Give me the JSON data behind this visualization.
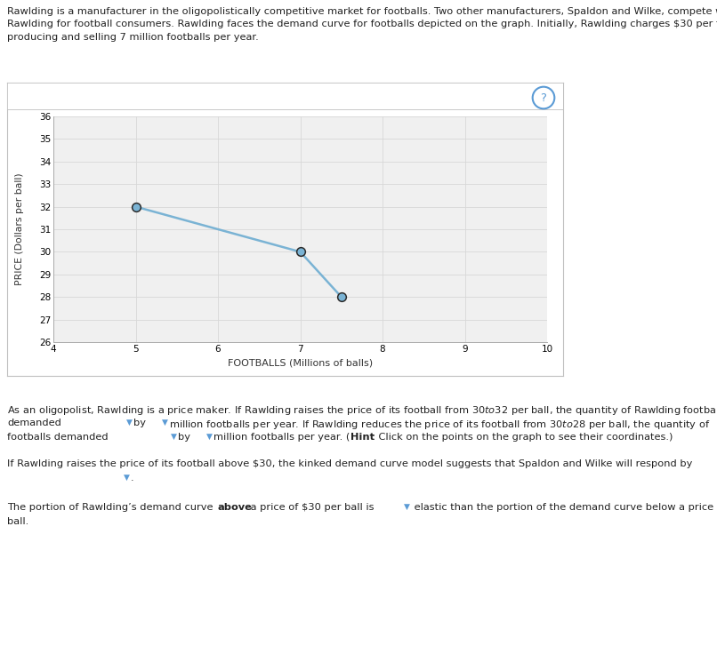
{
  "curve_x": [
    5,
    7,
    7.5
  ],
  "curve_y": [
    32,
    30,
    28
  ],
  "points": [
    [
      5,
      32
    ],
    [
      7,
      30
    ],
    [
      7.5,
      28
    ]
  ],
  "xlim": [
    4,
    10
  ],
  "ylim": [
    26,
    36
  ],
  "xticks": [
    4,
    5,
    6,
    7,
    8,
    9,
    10
  ],
  "yticks": [
    26,
    27,
    28,
    29,
    30,
    31,
    32,
    33,
    34,
    35,
    36
  ],
  "xlabel": "FOOTBALLS (Millions of balls)",
  "ylabel": "PRICE (Dollars per ball)",
  "line_color": "#7ab3d4",
  "point_color": "#7ab3d4",
  "point_edge_color": "#2c2c2c",
  "grid_color": "#d8d8d8",
  "plot_bg_color": "#f0f0f0",
  "outer_bg": "#ffffff",
  "box_bg_color": "#ffffff",
  "box_border_color": "#c0c0c0",
  "gold_bar_color": "#c8b56a",
  "question_circle_color": "#5b9bd5",
  "figsize": [
    8.06,
    7.45
  ],
  "dpi": 100
}
